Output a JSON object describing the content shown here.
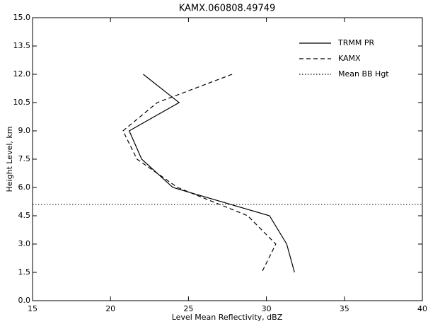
{
  "chart_data": {
    "type": "line",
    "title": "KAMX.060808.49749",
    "x_label": "Level Mean Reflectivity, dBZ",
    "y_label": "Height Level, km",
    "y": [
      12.0,
      10.5,
      9.0,
      7.5,
      6.0,
      4.5,
      3.0,
      1.5
    ],
    "series": [
      {
        "name": "TRMM PR",
        "color": "#000000",
        "dash": "solid",
        "values": [
          22.1,
          24.4,
          21.2,
          22.0,
          24.0,
          30.2,
          31.3,
          31.8
        ]
      },
      {
        "name": "KAMX",
        "color": "#000000",
        "dash": "dashed",
        "values": [
          27.8,
          23.0,
          20.8,
          21.7,
          24.3,
          28.8,
          30.6,
          29.7
        ]
      }
    ],
    "reference_line": {
      "name": "Mean BB Hgt",
      "color": "#000000",
      "dash": "dotted",
      "value": 5.1
    },
    "xlim": [
      15,
      40
    ],
    "xticks": [
      15,
      20,
      25,
      30,
      35,
      40
    ],
    "ylim": [
      0,
      15
    ],
    "yticks": [
      {
        "value": 0,
        "label": "0.0"
      },
      {
        "value": 1.5,
        "label": "1.5"
      },
      {
        "value": 3,
        "label": "3.0"
      },
      {
        "value": 4.5,
        "label": "4.5"
      },
      {
        "value": 6,
        "label": "6.0"
      },
      {
        "value": 7.5,
        "label": "7.5"
      },
      {
        "value": 9,
        "label": "9.0"
      },
      {
        "value": 10.5,
        "label": "10.5"
      },
      {
        "value": 12,
        "label": "12.0"
      },
      {
        "value": 13.5,
        "label": "13.5"
      },
      {
        "value": 15,
        "label": "15.0"
      }
    ],
    "legend": "upper right"
  }
}
